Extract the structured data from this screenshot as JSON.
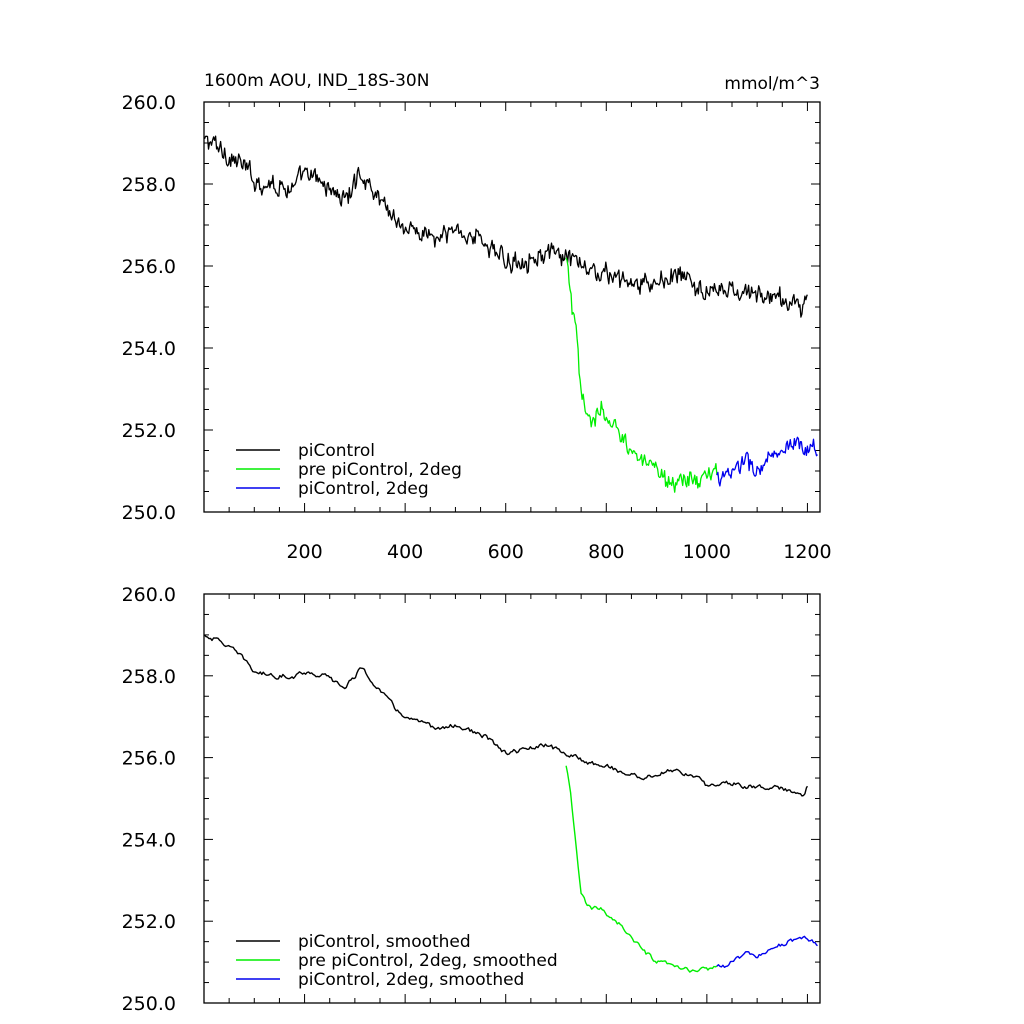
{
  "chart_data": [
    {
      "type": "line",
      "title": "1600m AOU, IND_18S-30N",
      "units": "mmol/m^3",
      "xlim": [
        0,
        1225
      ],
      "ylim": [
        250,
        260
      ],
      "x_ticks": [
        "200",
        "400",
        "600",
        "800",
        "1000",
        "1200"
      ],
      "y_ticks": [
        "260.0",
        "258.0",
        "256.0",
        "254.0",
        "252.0",
        "250.0"
      ],
      "legend": "bottom-left",
      "series": [
        {
          "name": "piControl",
          "color": "#000000",
          "x": [
            1,
            40,
            80,
            100,
            140,
            180,
            200,
            240,
            280,
            300,
            310,
            340,
            380,
            400,
            440,
            470,
            500,
            540,
            560,
            580,
            600,
            640,
            680,
            700,
            720,
            760,
            800,
            840,
            880,
            900,
            940,
            980,
            1000,
            1040,
            1080,
            1120,
            1160,
            1190,
            1200
          ],
          "y": [
            259.1,
            258.8,
            258.4,
            258.1,
            258.0,
            257.9,
            258.2,
            258.0,
            257.6,
            258.0,
            258.3,
            257.8,
            257.2,
            256.9,
            256.8,
            256.6,
            256.9,
            256.7,
            256.6,
            256.3,
            256.1,
            256.2,
            256.3,
            256.2,
            256.2,
            255.9,
            255.8,
            255.6,
            255.5,
            255.6,
            255.8,
            255.5,
            255.3,
            255.4,
            255.3,
            255.3,
            255.1,
            255.1,
            255.3
          ]
        },
        {
          "name": "pre piControl, 2deg",
          "color": "#00ee00",
          "x": [
            720,
            730,
            740,
            750,
            760,
            770,
            790,
            810,
            830,
            850,
            870,
            900,
            930,
            960,
            990,
            1020
          ],
          "y": [
            256.2,
            255.2,
            254.3,
            252.8,
            252.4,
            252.3,
            252.4,
            252.1,
            251.9,
            251.6,
            251.2,
            250.9,
            250.8,
            250.8,
            250.8,
            250.9
          ]
        },
        {
          "name": "piControl, 2deg",
          "color": "#0000ee",
          "x": [
            1020,
            1040,
            1060,
            1080,
            1100,
            1120,
            1140,
            1160,
            1180,
            1200,
            1220
          ],
          "y": [
            250.9,
            250.8,
            251.1,
            251.2,
            251.0,
            251.3,
            251.3,
            251.5,
            251.5,
            251.6,
            251.4
          ]
        }
      ]
    },
    {
      "type": "line",
      "xlim": [
        0,
        1225
      ],
      "ylim": [
        250,
        260
      ],
      "y_ticks": [
        "260.0",
        "258.0",
        "256.0",
        "254.0",
        "252.0",
        "250.0"
      ],
      "legend": "bottom-left",
      "series": [
        {
          "name": "piControl, smoothed",
          "color": "#000000",
          "x": [
            1,
            40,
            80,
            100,
            140,
            180,
            200,
            240,
            280,
            300,
            310,
            340,
            380,
            400,
            440,
            470,
            500,
            540,
            560,
            580,
            600,
            640,
            680,
            700,
            720,
            760,
            800,
            840,
            880,
            900,
            940,
            980,
            1000,
            1040,
            1080,
            1120,
            1160,
            1190,
            1200
          ],
          "y": [
            259.0,
            258.8,
            258.4,
            258.1,
            258.0,
            258.0,
            258.1,
            258.0,
            257.7,
            258.0,
            258.2,
            257.8,
            257.2,
            257.0,
            256.8,
            256.7,
            256.8,
            256.6,
            256.5,
            256.3,
            256.1,
            256.2,
            256.3,
            256.2,
            256.1,
            255.9,
            255.8,
            255.6,
            255.5,
            255.6,
            255.7,
            255.5,
            255.3,
            255.4,
            255.3,
            255.3,
            255.2,
            255.1,
            255.3
          ]
        },
        {
          "name": "pre piControl, 2deg, smoothed",
          "color": "#00ee00",
          "x": [
            720,
            730,
            740,
            750,
            760,
            770,
            790,
            810,
            830,
            850,
            870,
            900,
            930,
            960,
            990,
            1020
          ],
          "y": [
            255.8,
            255.0,
            253.8,
            252.7,
            252.4,
            252.3,
            252.3,
            252.1,
            251.9,
            251.6,
            251.3,
            251.0,
            250.9,
            250.8,
            250.8,
            250.9
          ]
        },
        {
          "name": "piControl, 2deg, smoothed",
          "color": "#0000ee",
          "x": [
            1020,
            1040,
            1060,
            1080,
            1100,
            1120,
            1140,
            1160,
            1180,
            1200,
            1220
          ],
          "y": [
            250.9,
            250.9,
            251.1,
            251.2,
            251.1,
            251.3,
            251.4,
            251.5,
            251.5,
            251.6,
            251.4
          ]
        }
      ]
    }
  ]
}
